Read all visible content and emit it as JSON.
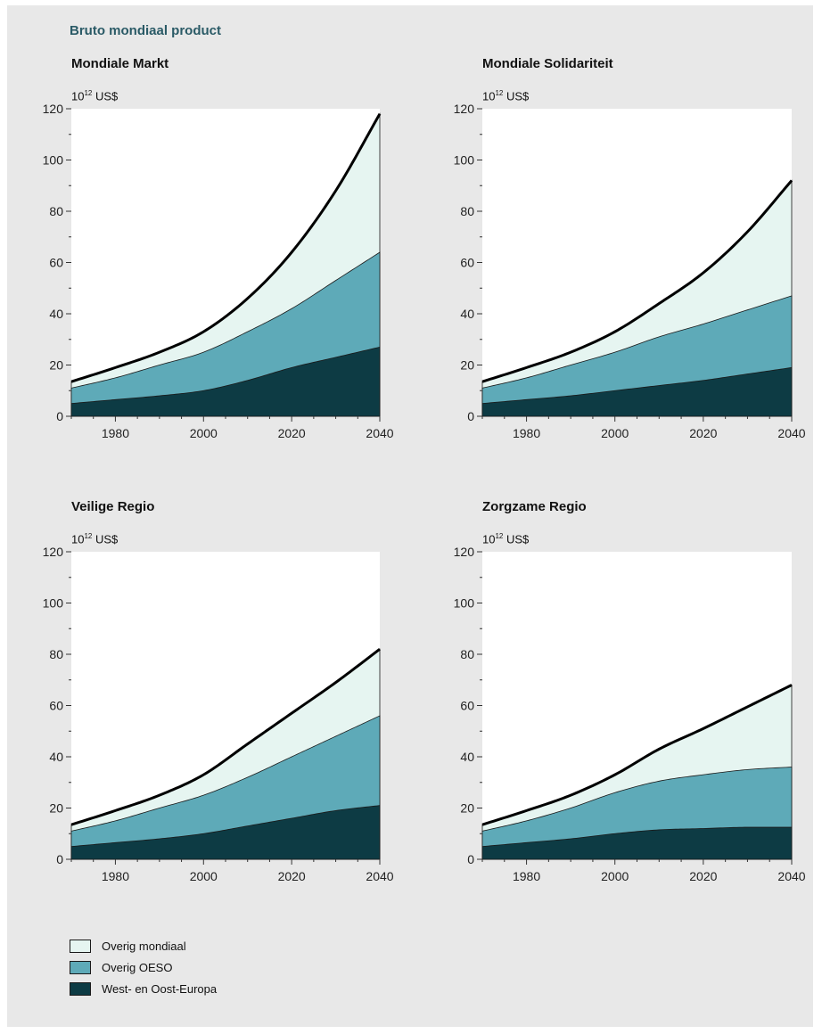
{
  "heading": "Bruto mondiaal product",
  "colors": {
    "overig_mondiaal": "#e6f5f1",
    "overig_oeso": "#5eaab8",
    "europa": "#0d3b44",
    "total_line": "#000000"
  },
  "legend": [
    {
      "label": "Overig mondiaal",
      "color": "#e6f5f1"
    },
    {
      "label": "Overig OESO",
      "color": "#5eaab8"
    },
    {
      "label": "West- en Oost-Europa",
      "color": "#0d3b44"
    }
  ],
  "chart_data": [
    {
      "type": "area",
      "title": "Mondiale Markt",
      "unit_base": "10",
      "unit_exp": "12",
      "unit_suffix": "US$",
      "x": [
        1970,
        1980,
        1990,
        2000,
        2010,
        2020,
        2030,
        2040
      ],
      "xticks": [
        1980,
        2000,
        2020,
        2040
      ],
      "yticks": [
        0,
        20,
        40,
        60,
        80,
        100,
        120
      ],
      "xlim": [
        1970,
        2040
      ],
      "ylim": [
        0,
        120
      ],
      "series": [
        {
          "name": "West- en Oost-Europa",
          "values": [
            5,
            6.5,
            8,
            10,
            14,
            19,
            23,
            27
          ]
        },
        {
          "name": "Overig OESO",
          "values": [
            11,
            15,
            20,
            25,
            33,
            42,
            53,
            64
          ]
        },
        {
          "name": "Overig mondiaal",
          "values": [
            13.5,
            19,
            25,
            33,
            46,
            64,
            88,
            118
          ]
        }
      ]
    },
    {
      "type": "area",
      "title": "Mondiale Solidariteit",
      "unit_base": "10",
      "unit_exp": "12",
      "unit_suffix": "US$",
      "x": [
        1970,
        1980,
        1990,
        2000,
        2010,
        2020,
        2030,
        2040
      ],
      "xticks": [
        1980,
        2000,
        2020,
        2040
      ],
      "yticks": [
        0,
        20,
        40,
        60,
        80,
        100,
        120
      ],
      "xlim": [
        1970,
        2040
      ],
      "ylim": [
        0,
        120
      ],
      "series": [
        {
          "name": "West- en Oost-Europa",
          "values": [
            5,
            6.5,
            8,
            10,
            12,
            14,
            16.5,
            19
          ]
        },
        {
          "name": "Overig OESO",
          "values": [
            11,
            15,
            20,
            25,
            31,
            36,
            41.5,
            47
          ]
        },
        {
          "name": "Overig mondiaal",
          "values": [
            13.5,
            19,
            25,
            33,
            44,
            56,
            72,
            92
          ]
        }
      ]
    },
    {
      "type": "area",
      "title": "Veilige Regio",
      "unit_base": "10",
      "unit_exp": "12",
      "unit_suffix": "US$",
      "x": [
        1970,
        1980,
        1990,
        2000,
        2010,
        2020,
        2030,
        2040
      ],
      "xticks": [
        1980,
        2000,
        2020,
        2040
      ],
      "yticks": [
        0,
        20,
        40,
        60,
        80,
        100,
        120
      ],
      "xlim": [
        1970,
        2040
      ],
      "ylim": [
        0,
        120
      ],
      "series": [
        {
          "name": "West- en Oost-Europa",
          "values": [
            5,
            6.5,
            8,
            10,
            13,
            16,
            19,
            21
          ]
        },
        {
          "name": "Overig OESO",
          "values": [
            11,
            15,
            20,
            25,
            32,
            40,
            48,
            56
          ]
        },
        {
          "name": "Overig mondiaal",
          "values": [
            13.5,
            19,
            25,
            33,
            45,
            57,
            69,
            82
          ]
        }
      ]
    },
    {
      "type": "area",
      "title": "Zorgzame Regio",
      "unit_base": "10",
      "unit_exp": "12",
      "unit_suffix": "US$",
      "x": [
        1970,
        1980,
        1990,
        2000,
        2010,
        2020,
        2030,
        2040
      ],
      "xticks": [
        1980,
        2000,
        2020,
        2040
      ],
      "yticks": [
        0,
        20,
        40,
        60,
        80,
        100,
        120
      ],
      "xlim": [
        1970,
        2040
      ],
      "ylim": [
        0,
        120
      ],
      "series": [
        {
          "name": "West- en Oost-Europa",
          "values": [
            5,
            6.5,
            8,
            10,
            11.5,
            12,
            12.5,
            12.5
          ]
        },
        {
          "name": "Overig OESO",
          "values": [
            11,
            15,
            20,
            26,
            30.5,
            33,
            35,
            36
          ]
        },
        {
          "name": "Overig mondiaal",
          "values": [
            13.5,
            19,
            25,
            33,
            43,
            51,
            59.5,
            68
          ]
        }
      ]
    }
  ]
}
